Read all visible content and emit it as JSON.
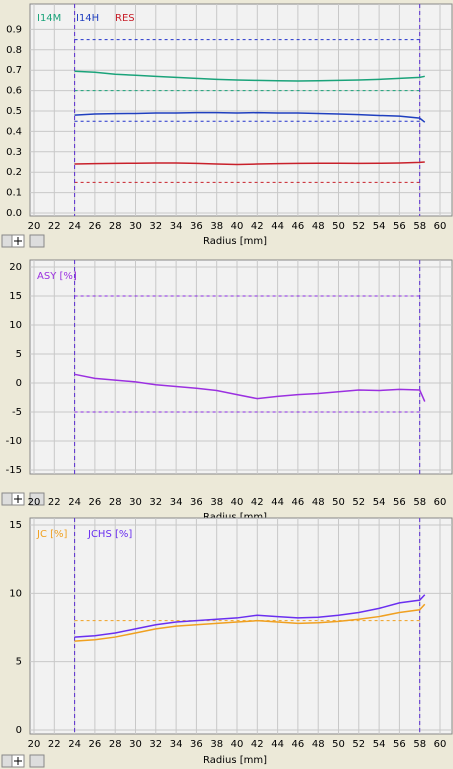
{
  "chart_data": [
    {
      "type": "line",
      "xlabel": "Radius [mm]",
      "x": [
        24,
        26,
        28,
        30,
        32,
        34,
        36,
        38,
        40,
        42,
        44,
        46,
        48,
        50,
        52,
        54,
        56,
        58,
        58.5
      ],
      "xlim": [
        20,
        60
      ],
      "xticks": [
        20,
        22,
        24,
        26,
        28,
        30,
        32,
        34,
        36,
        38,
        40,
        42,
        44,
        46,
        48,
        50,
        52,
        54,
        56,
        58,
        60
      ],
      "ylim": [
        0,
        1.0
      ],
      "yticks": [
        {
          "value": 0,
          "label": "0.0"
        },
        0.1,
        0.2,
        0.3,
        0.4,
        0.5,
        0.6,
        0.7,
        0.8,
        0.9
      ],
      "grid": true,
      "series": [
        {
          "name": "I14M",
          "color": "#1aa37a",
          "values": [
            0.695,
            0.69,
            0.68,
            0.675,
            0.67,
            0.665,
            0.66,
            0.655,
            0.652,
            0.65,
            0.648,
            0.647,
            0.648,
            0.65,
            0.652,
            0.655,
            0.66,
            0.665,
            0.67
          ]
        },
        {
          "name": "I14H",
          "color": "#1f3fbf",
          "values": [
            0.48,
            0.485,
            0.487,
            0.488,
            0.49,
            0.49,
            0.492,
            0.492,
            0.49,
            0.492,
            0.49,
            0.49,
            0.488,
            0.485,
            0.482,
            0.478,
            0.475,
            0.465,
            0.445
          ]
        },
        {
          "name": "RES",
          "color": "#c8202a",
          "values": [
            0.24,
            0.242,
            0.243,
            0.244,
            0.245,
            0.245,
            0.243,
            0.24,
            0.238,
            0.24,
            0.242,
            0.243,
            0.244,
            0.244,
            0.243,
            0.244,
            0.245,
            0.248,
            0.25
          ]
        }
      ],
      "reference_lines": [
        {
          "value": 0.85,
          "color": "#2233cc"
        },
        {
          "value": 0.45,
          "color": "#2233cc"
        },
        {
          "value": 0.6,
          "color": "#1aa37a"
        },
        {
          "value": 0.15,
          "color": "#c8202a"
        }
      ],
      "vlines": [
        24,
        58
      ]
    },
    {
      "type": "line",
      "xlabel": "Radius [mm]",
      "x": [
        24,
        26,
        28,
        30,
        32,
        34,
        36,
        38,
        40,
        42,
        44,
        46,
        48,
        50,
        52,
        54,
        56,
        58,
        58.5
      ],
      "xlim": [
        20,
        60
      ],
      "xticks": [
        20,
        22,
        24,
        26,
        28,
        30,
        32,
        34,
        36,
        38,
        40,
        42,
        44,
        46,
        48,
        50,
        52,
        54,
        56,
        58,
        60
      ],
      "ylim": [
        -15,
        20
      ],
      "yticks": [
        -15,
        -10,
        -5,
        0,
        5,
        10,
        15,
        20
      ],
      "grid": true,
      "series": [
        {
          "name": "ASY [%]",
          "color": "#9b30e0",
          "values": [
            1.5,
            0.8,
            0.5,
            0.2,
            -0.3,
            -0.6,
            -0.9,
            -1.3,
            -2.0,
            -2.7,
            -2.3,
            -2.0,
            -1.8,
            -1.5,
            -1.2,
            -1.3,
            -1.1,
            -1.2,
            -3.2
          ]
        }
      ],
      "reference_lines": [
        {
          "value": 15,
          "color": "#8a2be2"
        },
        {
          "value": -5,
          "color": "#8a2be2"
        }
      ],
      "vlines": [
        24,
        58
      ]
    },
    {
      "type": "line",
      "xlabel": "Radius [mm]",
      "x": [
        24,
        26,
        28,
        30,
        32,
        34,
        36,
        38,
        40,
        42,
        44,
        46,
        48,
        50,
        52,
        54,
        56,
        58,
        58.5
      ],
      "xlim": [
        20,
        60
      ],
      "xticks": [
        20,
        22,
        24,
        26,
        28,
        30,
        32,
        34,
        36,
        38,
        40,
        42,
        44,
        46,
        48,
        50,
        52,
        54,
        56,
        58,
        60
      ],
      "ylim": [
        0,
        15
      ],
      "yticks": [
        0,
        5,
        10,
        15
      ],
      "grid": true,
      "series": [
        {
          "name": "JC [%]",
          "color": "#f0a020",
          "values": [
            6.5,
            6.6,
            6.8,
            7.1,
            7.4,
            7.6,
            7.7,
            7.8,
            7.9,
            8.0,
            7.9,
            7.8,
            7.85,
            7.95,
            8.1,
            8.3,
            8.6,
            8.8,
            9.2
          ]
        },
        {
          "name": "JCHS [%]",
          "color": "#6a2ff0",
          "values": [
            6.8,
            6.9,
            7.1,
            7.4,
            7.7,
            7.9,
            8.0,
            8.1,
            8.2,
            8.4,
            8.3,
            8.2,
            8.25,
            8.4,
            8.6,
            8.9,
            9.3,
            9.5,
            9.9
          ]
        }
      ],
      "reference_lines": [
        {
          "value": 8,
          "color": "#f0a020"
        }
      ],
      "vlines": [
        24,
        58
      ]
    }
  ]
}
